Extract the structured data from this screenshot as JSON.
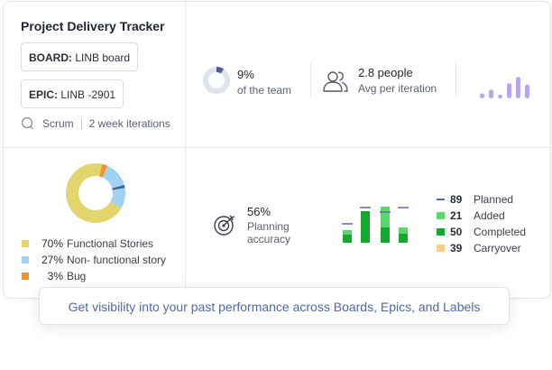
{
  "project": {
    "title": "Project Delivery Tracker",
    "board_label": "BOARD:",
    "board_value": "LINB board",
    "epic_label": "EPIC:",
    "epic_value": "LINB -2901",
    "method": "Scrum",
    "iterations": "2 week iterations"
  },
  "stats": {
    "team_pct": "9%",
    "team_caption": "of the team",
    "team_fraction": 0.09,
    "people": "2.8 people",
    "people_caption": "Avg per iteration",
    "sparkline_levels": [
      0.2,
      0.35,
      0.15,
      0.6,
      0.85,
      0.55
    ]
  },
  "colors": {
    "functional": "#e2d56e",
    "non_functional": "#9fd3f1",
    "bug": "#f0922e",
    "donut_navy": "#4a5f9a",
    "sparkline": "#b7a6ec",
    "planned": "#5a6aa8",
    "added": "#5ad66d",
    "completed": "#15a82c",
    "carryover": "#f6cf8a"
  },
  "breakdown": {
    "items": [
      {
        "pct": "70%",
        "label": "Functional Stories",
        "value": 70
      },
      {
        "pct": "27%",
        "label": "Non- functional story",
        "value": 27
      },
      {
        "pct": "3%",
        "label": "Bug",
        "value": 3
      }
    ]
  },
  "planning": {
    "accuracy": "56%",
    "caption_line1": "Planning",
    "caption_line2": "accuracy",
    "legend": [
      {
        "num": "89",
        "label": "Planned"
      },
      {
        "num": "21",
        "label": "Added"
      },
      {
        "num": "50",
        "label": "Completed"
      },
      {
        "num": "39",
        "label": "Carryover"
      }
    ]
  },
  "banner": "Get visibility into your past performance across Boards, Epics, and Labels"
}
